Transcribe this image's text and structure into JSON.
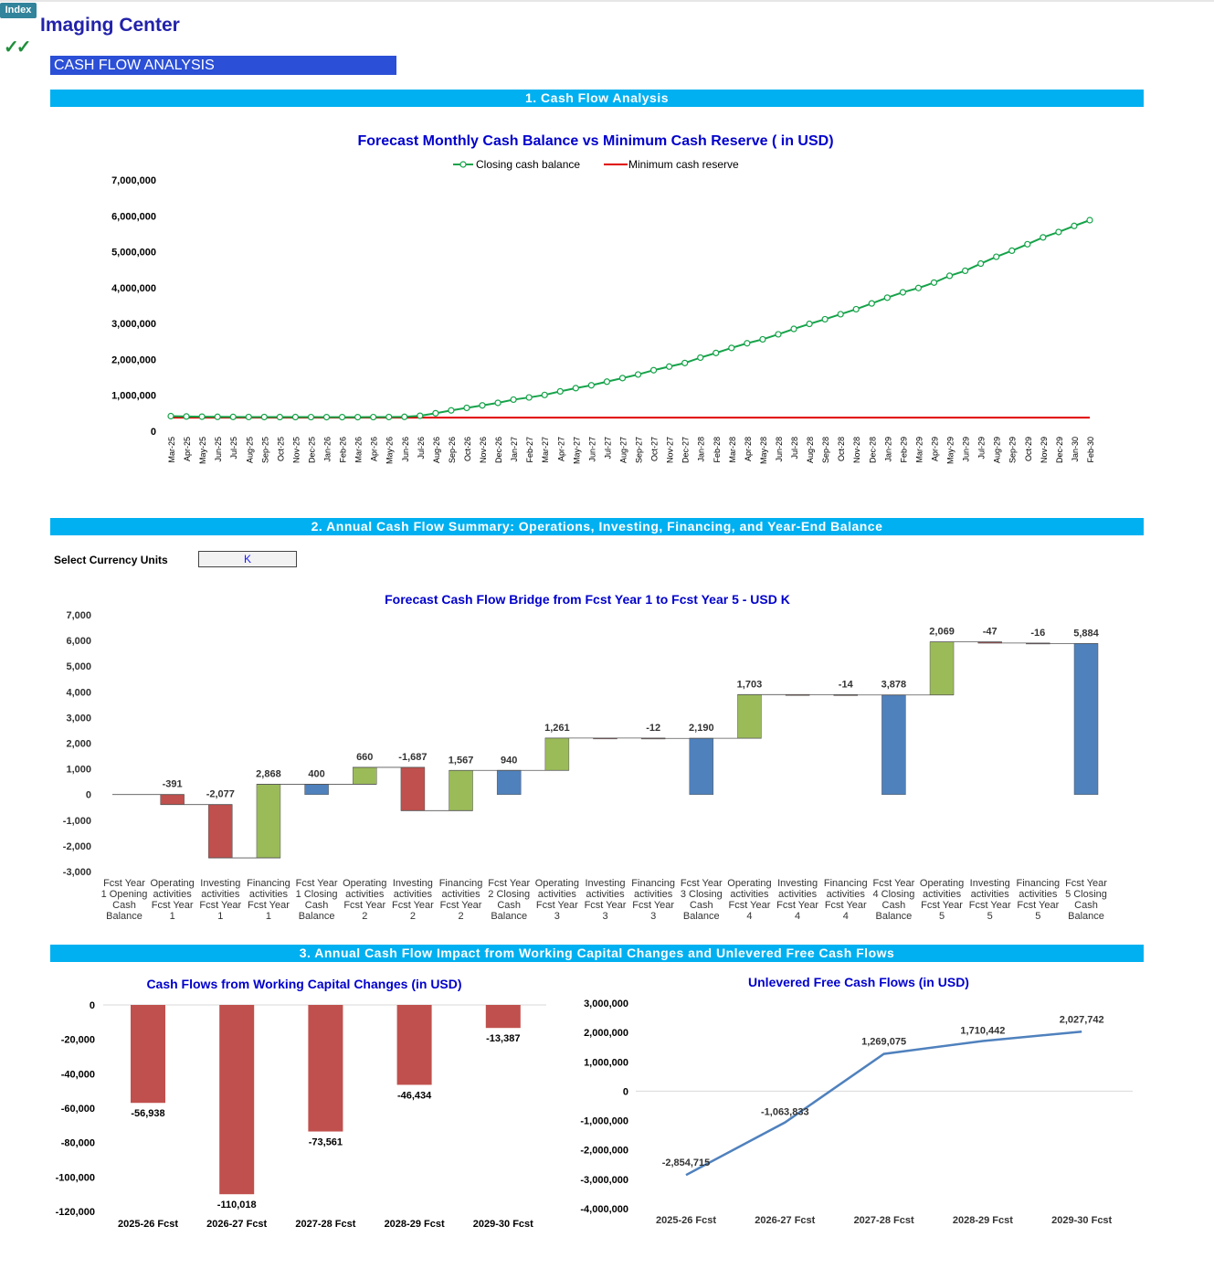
{
  "app": {
    "index_tab": "Index",
    "title": "Imaging Center",
    "section_title": "CASH FLOW ANALYSIS"
  },
  "banners": {
    "b1": "1. Cash Flow Analysis",
    "b2": "2. Annual Cash Flow Summary: Operations, Investing, Financing, and Year-End Balance",
    "b3": "3. Annual Cash Flow Impact from Working Capital Changes and Unlevered Free Cash Flows"
  },
  "currency": {
    "label": "Select Currency Units",
    "value": "K"
  },
  "colors": {
    "banner": "#00b0f0",
    "section": "#2b4fd6",
    "title_blue": "#0000cc",
    "green_line": "#16a34a",
    "red_line": "#e00000",
    "bar_red": "#c0504d",
    "bar_green": "#9bbb59",
    "bar_blue": "#4f81bd",
    "line_blue": "#4f81bd"
  },
  "chart_data": [
    {
      "type": "line",
      "title": "Forecast Monthly Cash Balance vs Minimum Cash Reserve ( in USD)",
      "x": [
        "Mar-25",
        "Apr-25",
        "May-25",
        "Jun-25",
        "Jul-25",
        "Aug-25",
        "Sep-25",
        "Oct-25",
        "Nov-25",
        "Dec-25",
        "Jan-26",
        "Feb-26",
        "Mar-26",
        "Apr-26",
        "May-26",
        "Jun-26",
        "Jul-26",
        "Aug-26",
        "Sep-26",
        "Oct-26",
        "Nov-26",
        "Dec-26",
        "Jan-27",
        "Feb-27",
        "Mar-27",
        "Apr-27",
        "May-27",
        "Jun-27",
        "Jul-27",
        "Aug-27",
        "Sep-27",
        "Oct-27",
        "Nov-27",
        "Dec-27",
        "Jan-28",
        "Feb-28",
        "Mar-28",
        "Apr-28",
        "May-28",
        "Jun-28",
        "Jul-28",
        "Aug-28",
        "Sep-28",
        "Oct-28",
        "Nov-28",
        "Dec-28",
        "Jan-29",
        "Feb-29",
        "Mar-29",
        "Apr-29",
        "May-29",
        "Jun-29",
        "Jul-29",
        "Aug-29",
        "Sep-29",
        "Oct-29",
        "Nov-29",
        "Dec-29",
        "Jan-30",
        "Feb-30"
      ],
      "ylim": [
        0,
        7000000
      ],
      "yticks": [
        "0",
        "1,000,000",
        "2,000,000",
        "3,000,000",
        "4,000,000",
        "5,000,000",
        "6,000,000",
        "7,000,000"
      ],
      "legend_position": "top",
      "series": [
        {
          "name": "Closing cash balance",
          "values": [
            420000,
            410000,
            405000,
            400000,
            398000,
            396000,
            395000,
            394000,
            394000,
            393000,
            392000,
            392000,
            392000,
            393000,
            395000,
            400000,
            430000,
            500000,
            580000,
            650000,
            720000,
            790000,
            880000,
            940000,
            1010000,
            1110000,
            1200000,
            1280000,
            1380000,
            1480000,
            1580000,
            1700000,
            1800000,
            1900000,
            2050000,
            2180000,
            2320000,
            2450000,
            2560000,
            2700000,
            2850000,
            2990000,
            3120000,
            3260000,
            3400000,
            3560000,
            3720000,
            3870000,
            3990000,
            4140000,
            4330000,
            4470000,
            4670000,
            4860000,
            5030000,
            5210000,
            5400000,
            5550000,
            5720000,
            5880000
          ]
        },
        {
          "name": "Minimum cash reserve",
          "values": [
            380000,
            380000,
            380000,
            380000,
            380000,
            380000,
            380000,
            380000,
            380000,
            380000,
            380000,
            380000,
            380000,
            380000,
            380000,
            380000,
            380000,
            380000,
            380000,
            380000,
            380000,
            380000,
            380000,
            380000,
            380000,
            380000,
            380000,
            380000,
            380000,
            380000,
            380000,
            380000,
            380000,
            380000,
            380000,
            380000,
            380000,
            380000,
            380000,
            380000,
            380000,
            380000,
            380000,
            380000,
            380000,
            380000,
            380000,
            380000,
            380000,
            380000,
            380000,
            380000,
            380000,
            380000,
            380000,
            380000,
            380000,
            380000,
            380000,
            380000
          ]
        }
      ]
    },
    {
      "type": "bar",
      "subtype": "waterfall",
      "title": "Forecast Cash Flow Bridge from Fcst Year 1 to Fcst Year 5 - USD K",
      "ylim": [
        -3000,
        7000
      ],
      "yticks": [
        "-3,000",
        "-2,000",
        "-1,000",
        "0",
        "1,000",
        "2,000",
        "3,000",
        "4,000",
        "5,000",
        "6,000",
        "7,000"
      ],
      "categories": [
        [
          "Fcst Year",
          "1 Opening",
          "Cash",
          "Balance"
        ],
        [
          "Operating",
          "activities",
          "Fcst Year",
          "1"
        ],
        [
          "Investing",
          "activities",
          "Fcst Year",
          "1"
        ],
        [
          "Financing",
          "activities",
          "Fcst Year",
          "1"
        ],
        [
          "Fcst Year",
          "1 Closing",
          "Cash",
          "Balance"
        ],
        [
          "Operating",
          "activities",
          "Fcst Year",
          "2"
        ],
        [
          "Investing",
          "activities",
          "Fcst Year",
          "2"
        ],
        [
          "Financing",
          "activities",
          "Fcst Year",
          "2"
        ],
        [
          "Fcst Year",
          "2 Closing",
          "Cash",
          "Balance"
        ],
        [
          "Operating",
          "activities",
          "Fcst Year",
          "3"
        ],
        [
          "Investing",
          "activities",
          "Fcst Year",
          "3"
        ],
        [
          "Financing",
          "activities",
          "Fcst Year",
          "3"
        ],
        [
          "Fcst Year",
          "3 Closing",
          "Cash",
          "Balance"
        ],
        [
          "Operating",
          "activities",
          "Fcst Year",
          "4"
        ],
        [
          "Investing",
          "activities",
          "Fcst Year",
          "4"
        ],
        [
          "Financing",
          "activities",
          "Fcst Year",
          "4"
        ],
        [
          "Fcst Year",
          "4 Closing",
          "Cash",
          "Balance"
        ],
        [
          "Operating",
          "activities",
          "Fcst Year",
          "5"
        ],
        [
          "Investing",
          "activities",
          "Fcst Year",
          "5"
        ],
        [
          "Financing",
          "activities",
          "Fcst Year",
          "5"
        ],
        [
          "Fcst Year",
          "5 Closing",
          "Cash",
          "Balance"
        ]
      ],
      "values": [
        0,
        -391,
        -2077,
        2868,
        400,
        660,
        -1687,
        1567,
        940,
        1261,
        -2,
        -12,
        2190,
        1703,
        -3,
        -14,
        3878,
        2069,
        -47,
        -16,
        5884
      ],
      "kinds": [
        "total",
        "delta",
        "delta",
        "delta",
        "total",
        "delta",
        "delta",
        "delta",
        "total",
        "delta",
        "delta",
        "delta",
        "total",
        "delta",
        "delta",
        "delta",
        "total",
        "delta",
        "delta",
        "delta",
        "total"
      ],
      "labels": [
        "",
        "-391",
        "-2,077",
        "2,868",
        "400",
        "660",
        "-1,687",
        "1,567",
        "940",
        "1,261",
        "",
        "-12",
        "2,190",
        "1,703",
        "",
        "-14",
        "3,878",
        "2,069",
        "-47",
        "-16",
        "5,884"
      ]
    },
    {
      "type": "bar",
      "title": "Cash Flows from Working Capital Changes (in USD)",
      "categories": [
        "2025-26 Fcst",
        "2026-27 Fcst",
        "2027-28 Fcst",
        "2028-29 Fcst",
        "2029-30 Fcst"
      ],
      "values": [
        -56938,
        -110018,
        -73561,
        -46434,
        -13387
      ],
      "labels": [
        "-56,938",
        "-110,018",
        "-73,561",
        "-46,434",
        "-13,387"
      ],
      "ylim": [
        -120000,
        0
      ],
      "yticks": [
        "-120,000",
        "-100,000",
        "-80,000",
        "-60,000",
        "-40,000",
        "-20,000",
        "0"
      ]
    },
    {
      "type": "line",
      "title": "Unlevered Free Cash Flows (in USD)",
      "categories": [
        "2025-26 Fcst",
        "2026-27 Fcst",
        "2027-28 Fcst",
        "2028-29 Fcst",
        "2029-30 Fcst"
      ],
      "values": [
        -2854715,
        -1063833,
        1269075,
        1710442,
        2027742
      ],
      "labels": [
        "-2,854,715",
        "-1,063,833",
        "1,269,075",
        "1,710,442",
        "2,027,742"
      ],
      "ylim": [
        -4000000,
        3000000
      ],
      "yticks": [
        "-4,000,000",
        "-3,000,000",
        "-2,000,000",
        "-1,000,000",
        "0",
        "1,000,000",
        "2,000,000",
        "3,000,000"
      ]
    }
  ]
}
